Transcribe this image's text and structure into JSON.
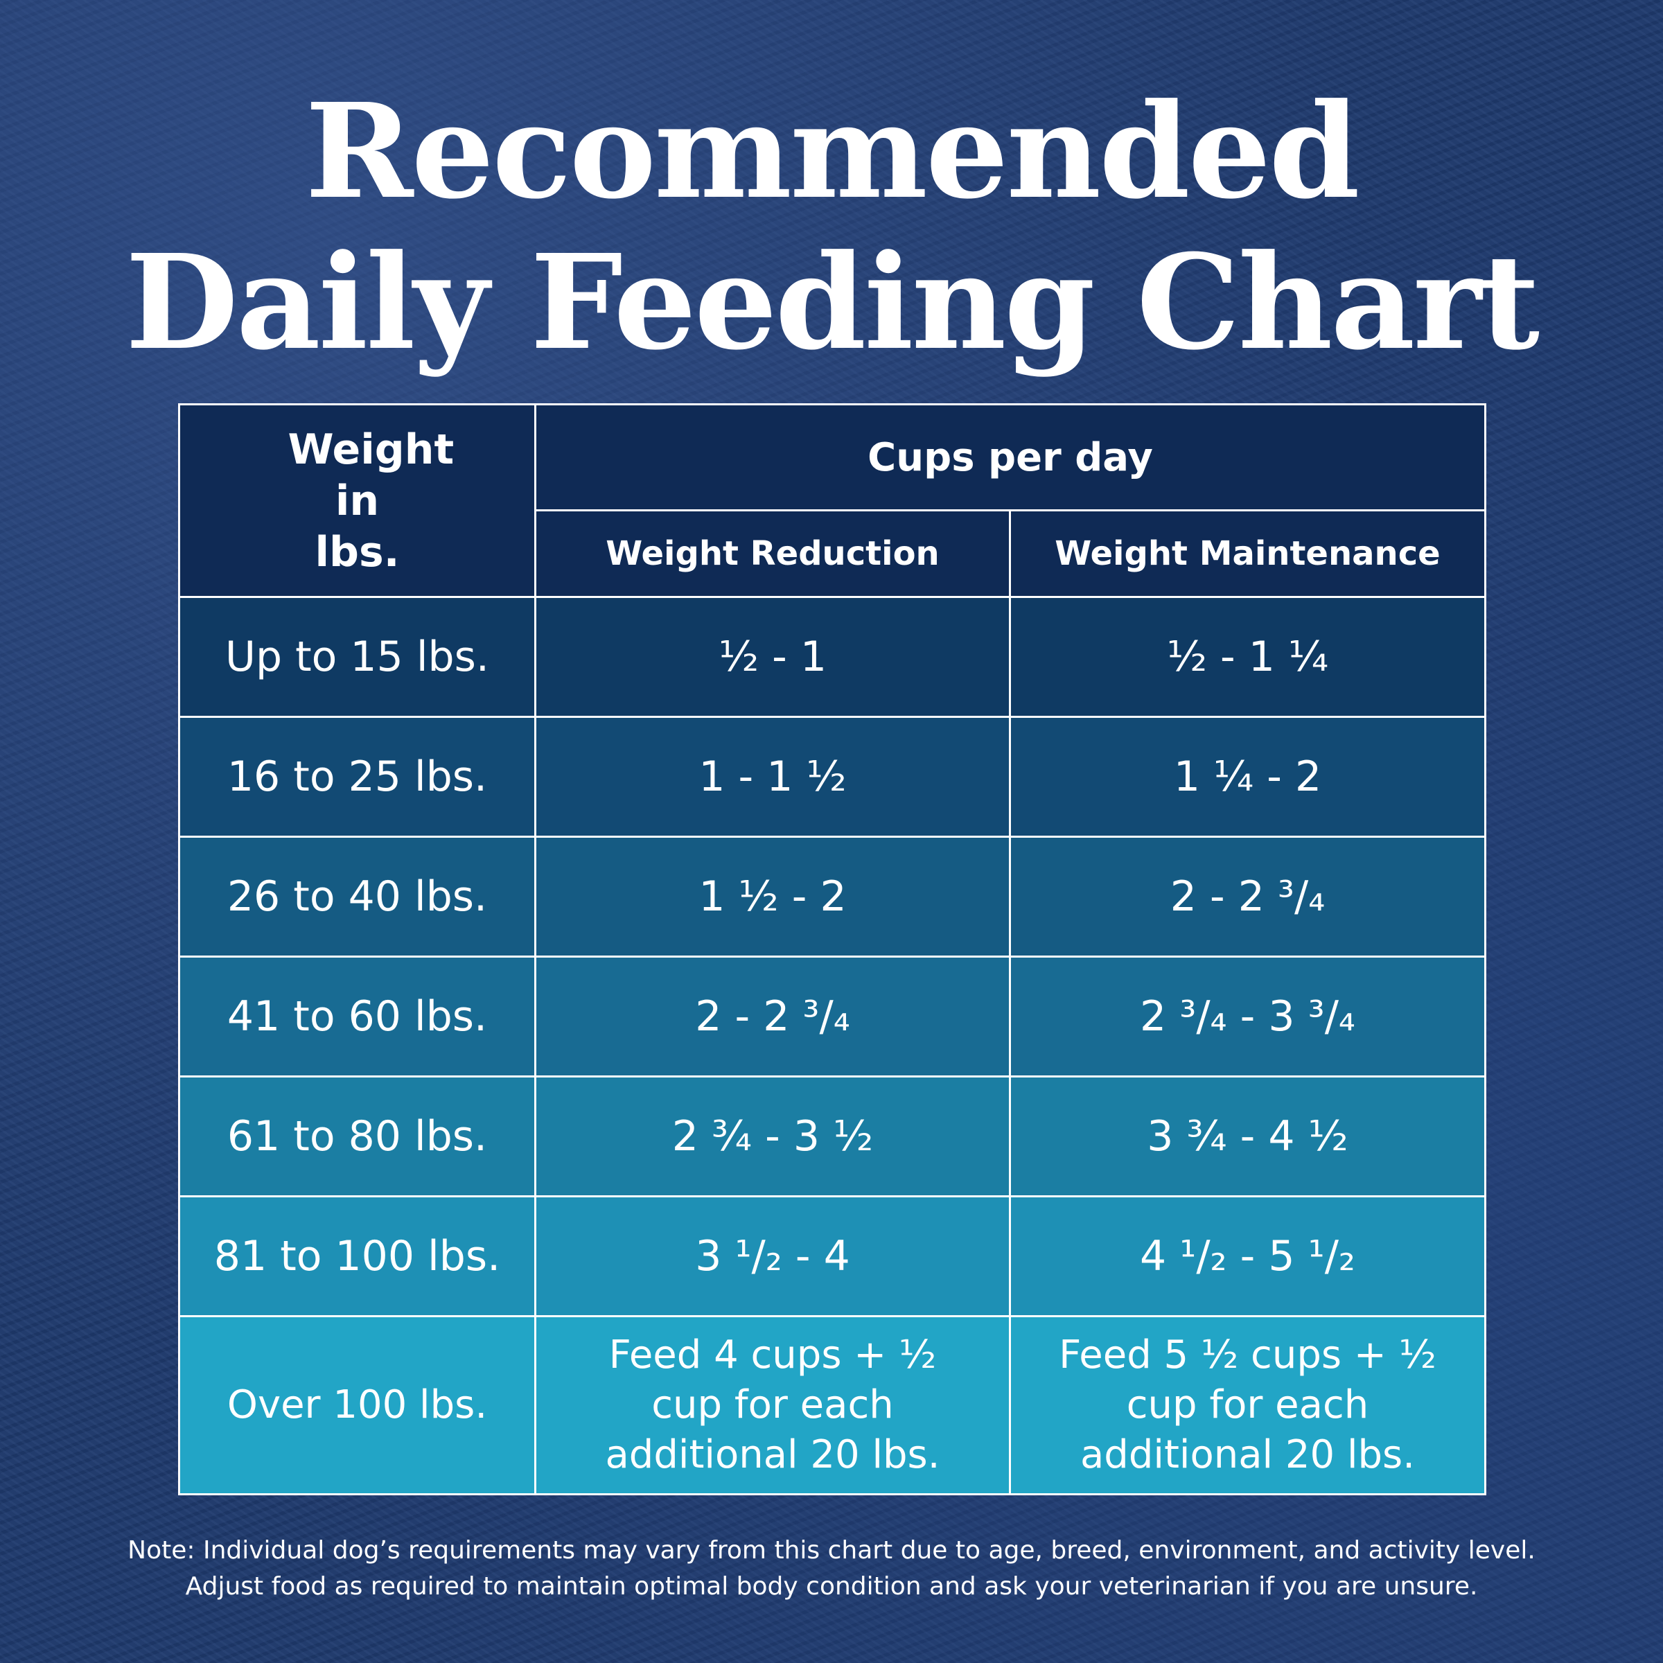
{
  "title": {
    "line1": "Recommended",
    "line2": "Daily Feeding Chart"
  },
  "table": {
    "weight_header": "Weight in lbs.",
    "cups_header": "Cups per day",
    "reduction_header": "Weight Reduction",
    "maintenance_header": "Weight Maintenance",
    "rows": [
      {
        "weight": "Up to 15 lbs.",
        "reduction": "½ - 1",
        "maintenance": "½ - 1 ¼"
      },
      {
        "weight": "16 to 25 lbs.",
        "reduction": "1 - 1 ½",
        "maintenance": "1 ¼ - 2"
      },
      {
        "weight": "26 to 40 lbs.",
        "reduction": "1 ½ - 2",
        "maintenance": "2 - 2 ³/₄"
      },
      {
        "weight": "41 to 60 lbs.",
        "reduction": "2 - 2 ³/₄",
        "maintenance": "2 ³/₄ - 3 ³/₄"
      },
      {
        "weight": "61 to 80 lbs.",
        "reduction": "2 ¾ - 3 ½",
        "maintenance": "3 ¾ - 4 ½"
      },
      {
        "weight": "81 to 100 lbs.",
        "reduction": "3 ¹/₂ - 4",
        "maintenance": "4 ¹/₂ - 5 ¹/₂"
      },
      {
        "weight": "Over 100 lbs.",
        "reduction": "Feed 4 cups + ½ cup for each additional 20 lbs.",
        "maintenance": "Feed 5 ½ cups + ½ cup for each additional 20 lbs."
      }
    ]
  },
  "note": {
    "line1": "Note: Individual dog’s requirements may vary from this chart due to age, breed, environment, and activity level.",
    "line2": "Adjust food as required to maintain optimal body condition and ask your veterinarian if you are unsure."
  },
  "colors": {
    "background": "#1f3a6e",
    "header": "#0f2a55",
    "row_gradient": [
      "#0f3a63",
      "#124a74",
      "#155b83",
      "#186b93",
      "#1b7ea3",
      "#1e90b5",
      "#22a5c6"
    ]
  }
}
